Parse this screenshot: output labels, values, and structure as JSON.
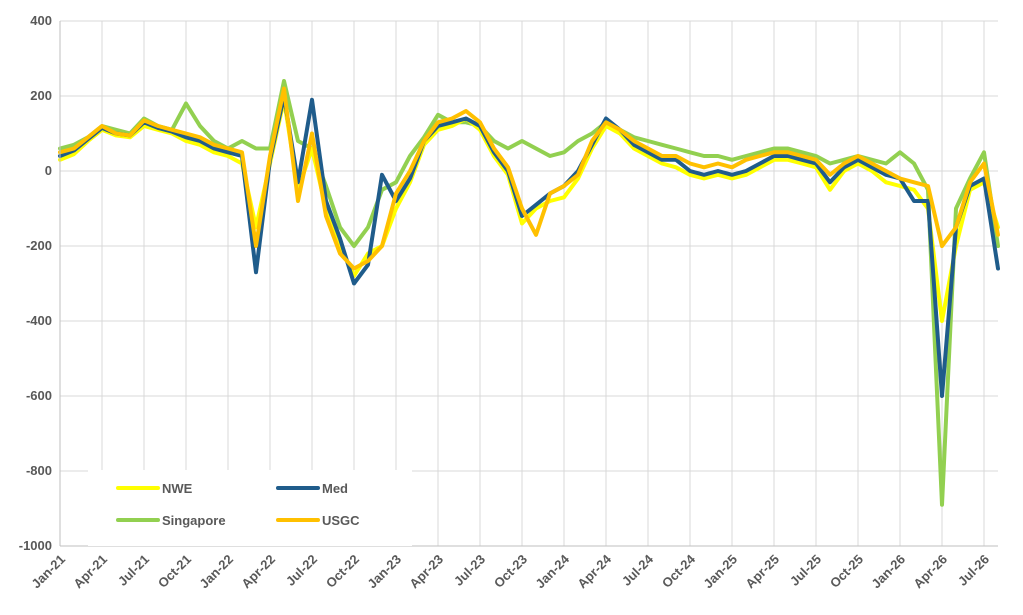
{
  "chart_data": {
    "type": "line",
    "title": "",
    "xlabel": "",
    "ylabel": "",
    "ylim": [
      -1000,
      400
    ],
    "yticks": [
      400,
      200,
      0,
      -200,
      -400,
      -600,
      -800,
      -1000
    ],
    "xticks": [
      "Jan-21",
      "Apr-21",
      "Jul-21",
      "Oct-21",
      "Jan-22",
      "Apr-22",
      "Jul-22",
      "Oct-22",
      "Jan-23",
      "Apr-23",
      "Jul-23",
      "Oct-23",
      "Jan-24",
      "Apr-24",
      "Jul-24",
      "Oct-24",
      "Jan-25",
      "Apr-25",
      "Jul-25",
      "Oct-25",
      "Jan-26",
      "Apr-26",
      "Jul-26"
    ],
    "grid": true,
    "legend_position": "bottom-left",
    "x": [
      "Jan-21",
      "Feb-21",
      "Mar-21",
      "Apr-21",
      "May-21",
      "Jun-21",
      "Jul-21",
      "Aug-21",
      "Sep-21",
      "Oct-21",
      "Nov-21",
      "Dec-21",
      "Jan-22",
      "Feb-22",
      "Mar-22",
      "Apr-22",
      "May-22",
      "Jun-22",
      "Jul-22",
      "Aug-22",
      "Sep-22",
      "Oct-22",
      "Nov-22",
      "Dec-22",
      "Jan-23",
      "Feb-23",
      "Mar-23",
      "Apr-23",
      "May-23",
      "Jun-23",
      "Jul-23",
      "Aug-23",
      "Sep-23",
      "Oct-23",
      "Nov-23",
      "Dec-23",
      "Jan-24",
      "Feb-24",
      "Mar-24",
      "Apr-24",
      "May-24",
      "Jun-24",
      "Jul-24",
      "Aug-24",
      "Sep-24",
      "Oct-24",
      "Nov-24",
      "Dec-24",
      "Jan-25",
      "Feb-25",
      "Mar-25",
      "Apr-25",
      "May-25",
      "Jun-25",
      "Jul-25",
      "Aug-25",
      "Sep-25",
      "Oct-25",
      "Nov-25",
      "Dec-25",
      "Jan-26",
      "Feb-26",
      "Mar-26",
      "Apr-26",
      "May-26",
      "Jun-26",
      "Jul-26",
      "Aug-26"
    ],
    "series": [
      {
        "name": "NWE",
        "color": "#FFFF00",
        "values": [
          30,
          45,
          80,
          110,
          95,
          90,
          120,
          110,
          100,
          80,
          70,
          50,
          40,
          20,
          -150,
          20,
          190,
          -50,
          60,
          -100,
          -200,
          -280,
          -220,
          -200,
          -100,
          -30,
          70,
          110,
          120,
          140,
          110,
          40,
          -10,
          -140,
          -100,
          -80,
          -70,
          -20,
          60,
          120,
          100,
          60,
          40,
          20,
          10,
          -10,
          -20,
          -10,
          -20,
          -10,
          10,
          30,
          30,
          20,
          10,
          -50,
          0,
          20,
          0,
          -30,
          -40,
          -50,
          -100,
          -400,
          -200,
          -50,
          -30,
          -150
        ]
      },
      {
        "name": "Med",
        "color": "#1F5C8B",
        "values": [
          40,
          55,
          85,
          115,
          100,
          95,
          130,
          115,
          105,
          90,
          80,
          60,
          50,
          40,
          -270,
          30,
          200,
          -30,
          190,
          -80,
          -180,
          -300,
          -250,
          -10,
          -80,
          -20,
          80,
          120,
          130,
          140,
          120,
          50,
          0,
          -120,
          -90,
          -60,
          -40,
          0,
          70,
          140,
          110,
          70,
          50,
          30,
          30,
          0,
          -10,
          0,
          -10,
          0,
          20,
          40,
          40,
          30,
          20,
          -30,
          10,
          30,
          10,
          -10,
          -20,
          -80,
          -80,
          -600,
          -150,
          -40,
          -20,
          -260
        ]
      },
      {
        "name": "Singapore",
        "color": "#92D050",
        "values": [
          60,
          70,
          90,
          120,
          110,
          100,
          140,
          120,
          110,
          180,
          120,
          80,
          60,
          80,
          60,
          60,
          240,
          80,
          60,
          -40,
          -150,
          -200,
          -150,
          -50,
          -30,
          40,
          90,
          150,
          130,
          130,
          120,
          80,
          60,
          80,
          60,
          40,
          50,
          80,
          100,
          130,
          110,
          90,
          80,
          70,
          60,
          50,
          40,
          40,
          30,
          40,
          50,
          60,
          60,
          50,
          40,
          20,
          30,
          40,
          30,
          20,
          50,
          20,
          -50,
          -890,
          -100,
          -20,
          50,
          -200
        ]
      },
      {
        "name": "USGC",
        "color": "#FFC000",
        "values": [
          50,
          60,
          90,
          120,
          100,
          95,
          135,
          120,
          110,
          100,
          90,
          70,
          60,
          50,
          -200,
          40,
          220,
          -80,
          100,
          -120,
          -220,
          -260,
          -240,
          -200,
          -60,
          0,
          80,
          130,
          140,
          160,
          130,
          60,
          10,
          -100,
          -170,
          -60,
          -40,
          -10,
          80,
          130,
          110,
          80,
          60,
          40,
          40,
          20,
          10,
          20,
          10,
          30,
          40,
          50,
          50,
          40,
          30,
          -10,
          20,
          40,
          20,
          0,
          -20,
          -30,
          -40,
          -200,
          -150,
          -30,
          20,
          -170
        ]
      }
    ]
  }
}
